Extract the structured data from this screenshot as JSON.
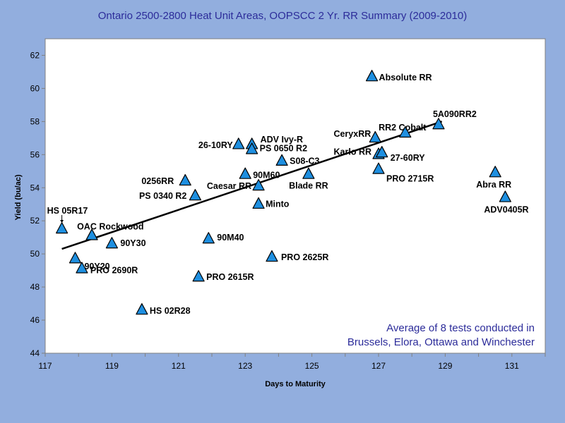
{
  "chart_data": {
    "type": "scatter",
    "title": "Ontario 2500-2800 Heat Unit Areas,  OOPSCC 2 Yr. RR Summary (2009-2010)",
    "xlabel": "Days to Maturity",
    "ylabel": "Yield (bu/ac)",
    "xlim": [
      117,
      132
    ],
    "ylim": [
      44,
      63
    ],
    "x_ticks": [
      "117",
      "119",
      "121",
      "123",
      "125",
      "127",
      "129",
      "131"
    ],
    "y_ticks": [
      "44",
      "46",
      "48",
      "50",
      "52",
      "54",
      "56",
      "58",
      "60",
      "62"
    ],
    "grid": false,
    "marker": "triangle",
    "marker_color": "#1e8fe0",
    "trendline": {
      "type": "linear",
      "x": [
        117.5,
        128.9
      ],
      "y": [
        50.3,
        58.0
      ]
    },
    "points": [
      {
        "label": "HS 05R17",
        "x": 117.5,
        "y": 51.5
      },
      {
        "label": "OAC Rockwood",
        "x": 118.4,
        "y": 51.1
      },
      {
        "label": "90Y30",
        "x": 119.0,
        "y": 50.6
      },
      {
        "label": "90Y20",
        "x": 117.9,
        "y": 49.7
      },
      {
        "label": "PRO 2690R",
        "x": 118.1,
        "y": 49.1
      },
      {
        "label": "HS 02R28",
        "x": 119.9,
        "y": 46.6
      },
      {
        "label": "0256RR",
        "x": 121.2,
        "y": 54.4
      },
      {
        "label": "PS 0340 R2",
        "x": 121.5,
        "y": 53.5
      },
      {
        "label": "90M40",
        "x": 121.9,
        "y": 50.9
      },
      {
        "label": "PRO 2615R",
        "x": 121.6,
        "y": 48.6
      },
      {
        "label": "26-10RY",
        "x": 122.8,
        "y": 56.6
      },
      {
        "label": "ADV Ivy-R",
        "x": 123.2,
        "y": 56.6
      },
      {
        "label": "PS 0650 R2",
        "x": 123.2,
        "y": 56.3
      },
      {
        "label": "90M60",
        "x": 123.0,
        "y": 54.8
      },
      {
        "label": "Caesar RR",
        "x": 123.4,
        "y": 54.1
      },
      {
        "label": "Minto",
        "x": 123.4,
        "y": 53.0
      },
      {
        "label": "S08-C3",
        "x": 124.1,
        "y": 55.6
      },
      {
        "label": "Blade RR",
        "x": 124.9,
        "y": 54.8
      },
      {
        "label": "PRO 2625R",
        "x": 123.8,
        "y": 49.8
      },
      {
        "label": "Absolute RR",
        "x": 126.8,
        "y": 60.7
      },
      {
        "label": "CeryxRR",
        "x": 126.9,
        "y": 57.0
      },
      {
        "label": "RR2 Cobalt",
        "x": 127.8,
        "y": 57.3
      },
      {
        "label": "5A090RR2",
        "x": 128.8,
        "y": 57.8
      },
      {
        "label": "Karlo RR",
        "x": 127.0,
        "y": 56.0
      },
      {
        "label": "27-60RY",
        "x": 127.1,
        "y": 56.1
      },
      {
        "label": "PRO 2715R",
        "x": 127.0,
        "y": 55.1
      },
      {
        "label": "Abra RR",
        "x": 130.5,
        "y": 54.9
      },
      {
        "label": "ADV0405R",
        "x": 130.8,
        "y": 53.4
      }
    ],
    "annotation": [
      "Average of 8 tests conducted in",
      "Brussels, Elora, Ottawa and Winchester"
    ]
  }
}
